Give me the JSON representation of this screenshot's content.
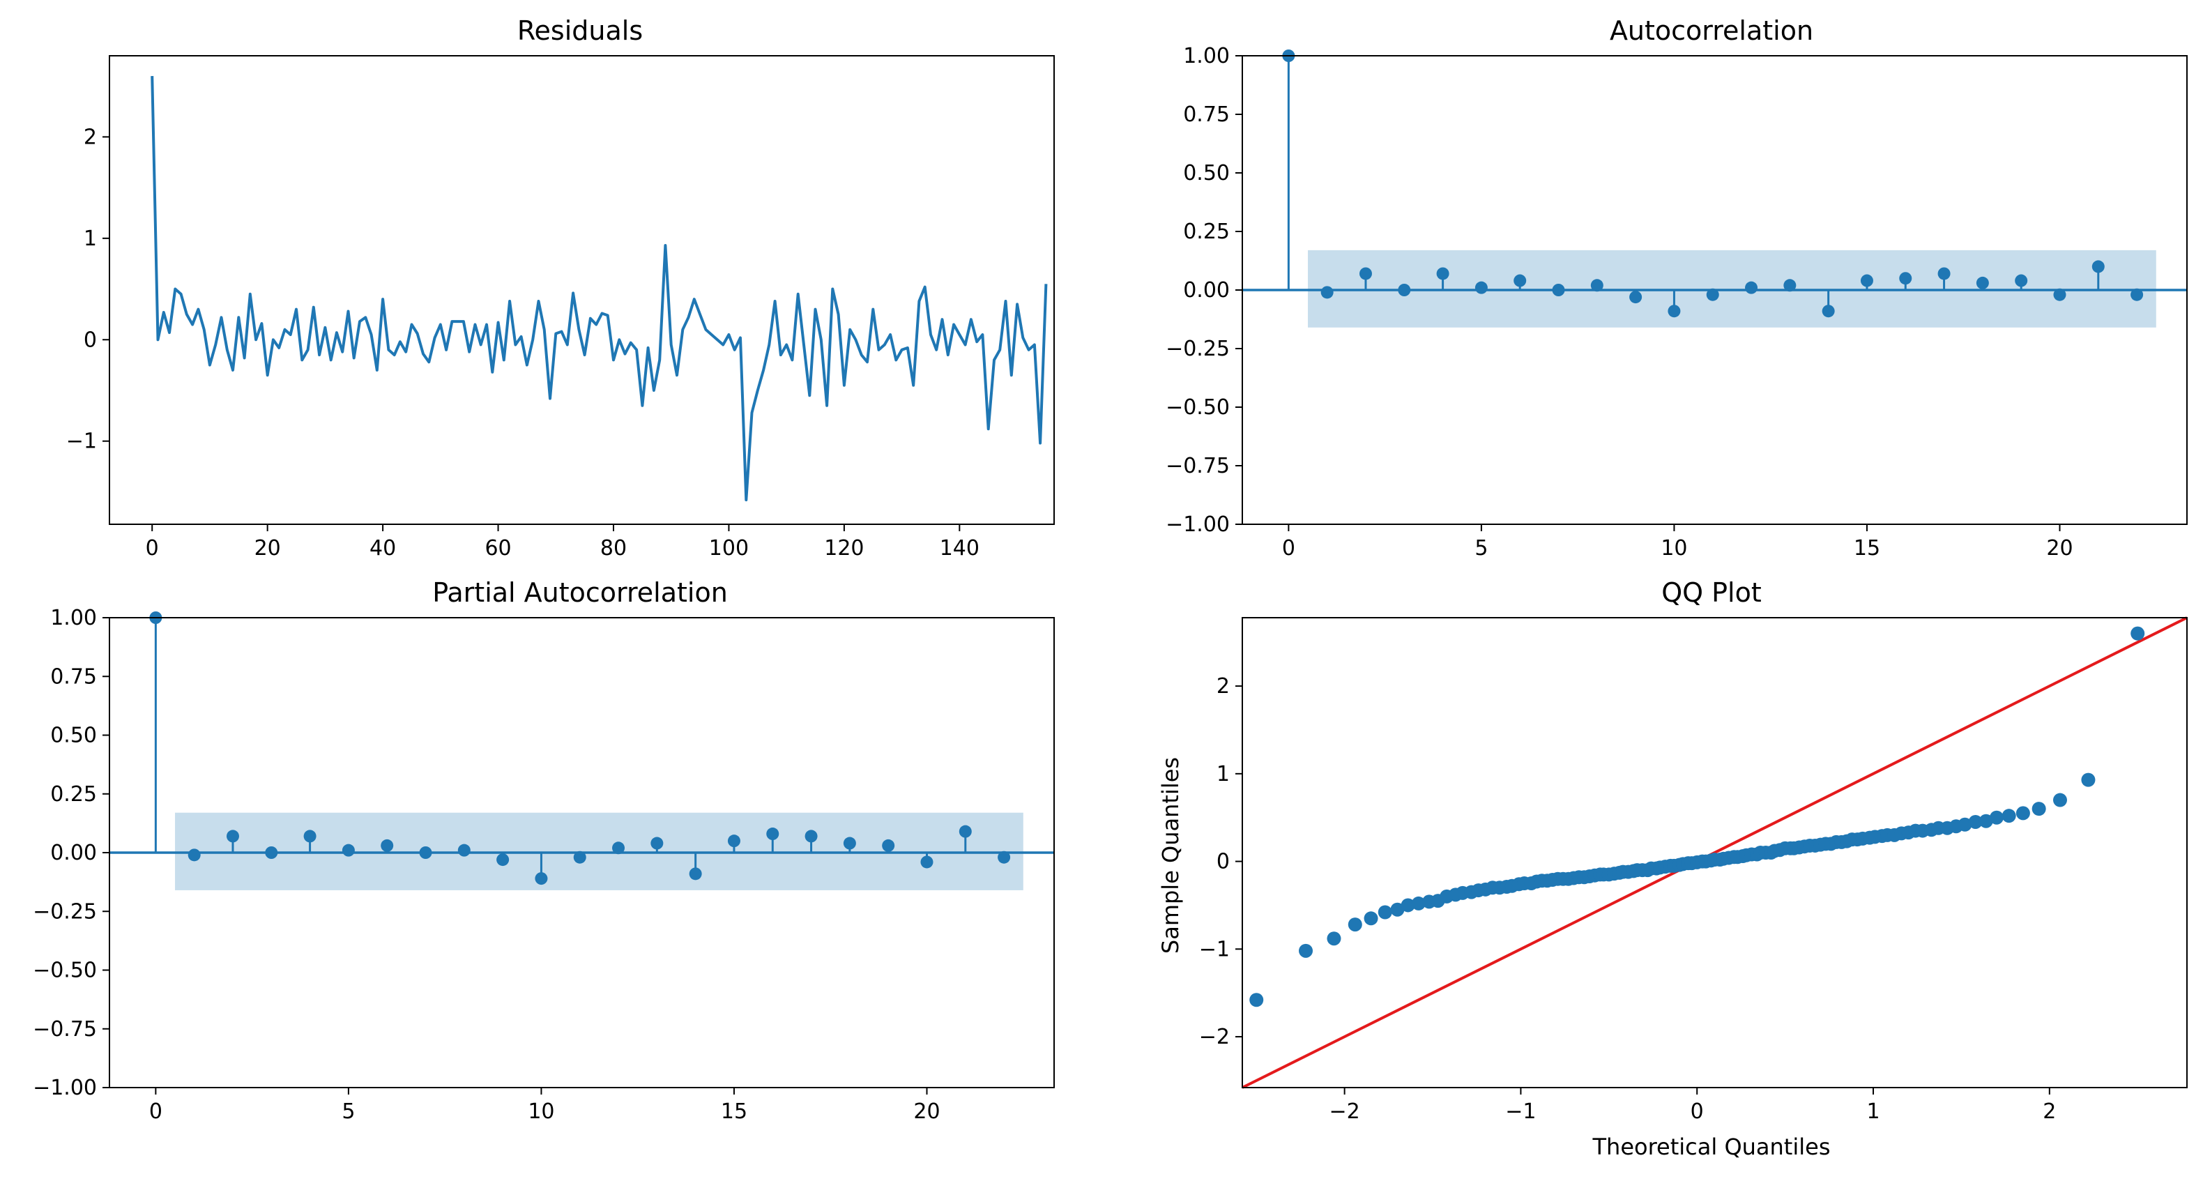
{
  "colors": {
    "series": "#1f77b4",
    "band": "#1f77b4",
    "reference_line": "#e41a1c",
    "frame": "#000000"
  },
  "chart_data": [
    {
      "type": "line",
      "title": "Residuals",
      "xlabel": "",
      "ylabel": "",
      "xlim": [
        -7.4,
        156.4
      ],
      "ylim": [
        -1.82,
        2.8
      ],
      "xticks": [
        0,
        20,
        40,
        60,
        80,
        100,
        120,
        140
      ],
      "xtick_labels": [
        "0",
        "20",
        "40",
        "60",
        "80",
        "100",
        "120",
        "140"
      ],
      "yticks": [
        -1,
        0,
        1,
        2
      ],
      "ytick_labels": [
        "−1",
        "0",
        "1",
        "2"
      ],
      "grid": false,
      "series": [
        {
          "x_start": 0,
          "values": [
            2.6,
            0.0,
            0.27,
            0.07,
            0.5,
            0.45,
            0.25,
            0.15,
            0.3,
            0.1,
            -0.25,
            -0.05,
            0.22,
            -0.1,
            -0.3,
            0.22,
            -0.18,
            0.45,
            0.0,
            0.16,
            -0.35,
            0.0,
            -0.08,
            0.1,
            0.05,
            0.3,
            -0.2,
            -0.1,
            0.32,
            -0.15,
            0.12,
            -0.2,
            0.07,
            -0.12,
            0.28,
            -0.18,
            0.18,
            0.22,
            0.05,
            -0.3,
            0.4,
            -0.1,
            -0.15,
            -0.02,
            -0.12,
            0.15,
            0.06,
            -0.14,
            -0.22,
            0.02,
            0.15,
            -0.1,
            0.18,
            0.18,
            0.18,
            -0.12,
            0.15,
            -0.05,
            0.15,
            -0.32,
            0.17,
            -0.2,
            0.38,
            -0.05,
            0.03,
            -0.25,
            0.0,
            0.38,
            0.1,
            -0.58,
            0.06,
            0.08,
            -0.05,
            0.46,
            0.1,
            -0.15,
            0.21,
            0.15,
            0.26,
            0.24,
            -0.2,
            0.0,
            -0.14,
            -0.03,
            -0.1,
            -0.65,
            -0.08,
            -0.5,
            -0.2,
            0.93,
            -0.05,
            -0.35,
            0.1,
            0.22,
            0.4,
            0.25,
            0.1,
            0.05,
            0.0,
            -0.05,
            0.05,
            -0.1,
            0.02,
            -1.58,
            -0.72,
            -0.5,
            -0.3,
            -0.05,
            0.38,
            -0.15,
            -0.05,
            -0.2,
            0.45,
            -0.05,
            -0.55,
            0.3,
            0.0,
            -0.65,
            0.5,
            0.25,
            -0.45,
            0.1,
            0.0,
            -0.15,
            -0.22,
            0.3,
            -0.1,
            -0.05,
            0.05,
            -0.2,
            -0.1,
            -0.08,
            -0.45,
            0.38,
            0.52,
            0.05,
            -0.1,
            0.2,
            -0.15,
            0.15,
            0.05,
            -0.05,
            0.2,
            -0.02,
            0.05,
            -0.88,
            -0.2,
            -0.1,
            0.38,
            -0.35,
            0.35,
            0.02,
            -0.1,
            -0.05,
            -1.02,
            0.55
          ]
        }
      ]
    },
    {
      "type": "stem",
      "title": "Autocorrelation",
      "xlabel": "",
      "ylabel": "",
      "xlim": [
        -1.2,
        23.3
      ],
      "ylim": [
        -1.0,
        1.0
      ],
      "xticks": [
        0,
        5,
        10,
        15,
        20
      ],
      "xtick_labels": [
        "0",
        "5",
        "10",
        "15",
        "20"
      ],
      "yticks": [
        -1.0,
        -0.75,
        -0.5,
        -0.25,
        0.0,
        0.25,
        0.5,
        0.75,
        1.0
      ],
      "ytick_labels": [
        "−1.00",
        "−0.75",
        "−0.50",
        "−0.25",
        "0.00",
        "0.25",
        "0.50",
        "0.75",
        "1.00"
      ],
      "grid": false,
      "x": [
        0,
        1,
        2,
        3,
        4,
        5,
        6,
        7,
        8,
        9,
        10,
        11,
        12,
        13,
        14,
        15,
        16,
        17,
        18,
        19,
        20,
        21,
        22
      ],
      "values": [
        1.0,
        -0.01,
        0.07,
        0.0,
        0.07,
        0.01,
        0.04,
        0.0,
        0.02,
        -0.03,
        -0.09,
        -0.02,
        0.01,
        0.02,
        -0.09,
        0.04,
        0.05,
        0.07,
        0.03,
        0.04,
        -0.02,
        0.1,
        -0.02
      ],
      "confidence_band": {
        "x_from": 0.5,
        "x_to": 22.5,
        "lower": -0.16,
        "upper": 0.17
      }
    },
    {
      "type": "stem",
      "title": "Partial Autocorrelation",
      "xlabel": "",
      "ylabel": "",
      "xlim": [
        -1.2,
        23.3
      ],
      "ylim": [
        -1.0,
        1.0
      ],
      "xticks": [
        0,
        5,
        10,
        15,
        20
      ],
      "xtick_labels": [
        "0",
        "5",
        "10",
        "15",
        "20"
      ],
      "yticks": [
        -1.0,
        -0.75,
        -0.5,
        -0.25,
        0.0,
        0.25,
        0.5,
        0.75,
        1.0
      ],
      "ytick_labels": [
        "−1.00",
        "−0.75",
        "−0.50",
        "−0.25",
        "0.00",
        "0.25",
        "0.50",
        "0.75",
        "1.00"
      ],
      "grid": false,
      "x": [
        0,
        1,
        2,
        3,
        4,
        5,
        6,
        7,
        8,
        9,
        10,
        11,
        12,
        13,
        14,
        15,
        16,
        17,
        18,
        19,
        20,
        21,
        22
      ],
      "values": [
        1.0,
        -0.01,
        0.07,
        0.0,
        0.07,
        0.01,
        0.03,
        0.0,
        0.01,
        -0.03,
        -0.11,
        -0.02,
        0.02,
        0.04,
        -0.09,
        0.05,
        0.08,
        0.07,
        0.04,
        0.03,
        -0.04,
        0.09,
        -0.02
      ],
      "confidence_band": {
        "x_from": 0.5,
        "x_to": 22.5,
        "lower": -0.16,
        "upper": 0.17
      }
    },
    {
      "type": "scatter",
      "title": "QQ Plot",
      "xlabel": "Theoretical Quantiles",
      "ylabel": "Sample Quantiles",
      "xlim": [
        -2.58,
        2.78
      ],
      "ylim": [
        -2.58,
        2.78
      ],
      "xticks": [
        -2,
        -1,
        0,
        1,
        2
      ],
      "xtick_labels": [
        "−2",
        "−1",
        "0",
        "1",
        "2"
      ],
      "yticks": [
        -2,
        -1,
        0,
        1,
        2
      ],
      "ytick_labels": [
        "−2",
        "−1",
        "0",
        "1",
        "2"
      ],
      "grid": false,
      "reference_line": {
        "slope": 1,
        "intercept": 0
      },
      "points": [
        [
          -2.5,
          -1.58
        ],
        [
          -2.22,
          -1.02
        ],
        [
          -2.06,
          -0.88
        ],
        [
          -1.94,
          -0.72
        ],
        [
          -1.85,
          -0.65
        ],
        [
          -1.77,
          -0.58
        ],
        [
          -1.7,
          -0.55
        ],
        [
          -1.64,
          -0.5
        ],
        [
          -1.58,
          -0.48
        ],
        [
          -1.52,
          -0.46
        ],
        [
          -1.47,
          -0.45
        ],
        [
          -1.42,
          -0.4
        ],
        [
          -1.37,
          -0.38
        ],
        [
          -1.33,
          -0.36
        ],
        [
          -1.28,
          -0.35
        ],
        [
          -1.24,
          -0.33
        ],
        [
          -1.2,
          -0.32
        ],
        [
          -1.16,
          -0.3
        ],
        [
          -1.12,
          -0.3
        ],
        [
          -1.08,
          -0.29
        ],
        [
          -1.05,
          -0.28
        ],
        [
          -1.01,
          -0.26
        ],
        [
          -0.98,
          -0.25
        ],
        [
          -0.94,
          -0.25
        ],
        [
          -0.91,
          -0.23
        ],
        [
          -0.88,
          -0.22
        ],
        [
          -0.85,
          -0.22
        ],
        [
          -0.82,
          -0.21
        ],
        [
          -0.79,
          -0.2
        ],
        [
          -0.76,
          -0.2
        ],
        [
          -0.73,
          -0.2
        ],
        [
          -0.7,
          -0.19
        ],
        [
          -0.67,
          -0.18
        ],
        [
          -0.64,
          -0.18
        ],
        [
          -0.61,
          -0.17
        ],
        [
          -0.58,
          -0.16
        ],
        [
          -0.55,
          -0.15
        ],
        [
          -0.53,
          -0.15
        ],
        [
          -0.5,
          -0.15
        ],
        [
          -0.47,
          -0.14
        ],
        [
          -0.44,
          -0.13
        ],
        [
          -0.42,
          -0.12
        ],
        [
          -0.39,
          -0.12
        ],
        [
          -0.36,
          -0.11
        ],
        [
          -0.34,
          -0.1
        ],
        [
          -0.31,
          -0.1
        ],
        [
          -0.28,
          -0.1
        ],
        [
          -0.26,
          -0.08
        ],
        [
          -0.23,
          -0.08
        ],
        [
          -0.21,
          -0.07
        ],
        [
          -0.18,
          -0.06
        ],
        [
          -0.15,
          -0.05
        ],
        [
          -0.13,
          -0.05
        ],
        [
          -0.1,
          -0.04
        ],
        [
          -0.08,
          -0.03
        ],
        [
          -0.05,
          -0.02
        ],
        [
          -0.03,
          -0.02
        ],
        [
          0.0,
          -0.01
        ],
        [
          0.03,
          0.0
        ],
        [
          0.05,
          0.0
        ],
        [
          0.08,
          0.01
        ],
        [
          0.1,
          0.02
        ],
        [
          0.13,
          0.02
        ],
        [
          0.15,
          0.03
        ],
        [
          0.18,
          0.04
        ],
        [
          0.21,
          0.05
        ],
        [
          0.23,
          0.05
        ],
        [
          0.26,
          0.06
        ],
        [
          0.28,
          0.07
        ],
        [
          0.31,
          0.08
        ],
        [
          0.34,
          0.08
        ],
        [
          0.36,
          0.1
        ],
        [
          0.39,
          0.1
        ],
        [
          0.42,
          0.1
        ],
        [
          0.44,
          0.12
        ],
        [
          0.47,
          0.13
        ],
        [
          0.5,
          0.15
        ],
        [
          0.53,
          0.15
        ],
        [
          0.55,
          0.15
        ],
        [
          0.58,
          0.16
        ],
        [
          0.61,
          0.17
        ],
        [
          0.64,
          0.18
        ],
        [
          0.67,
          0.18
        ],
        [
          0.7,
          0.19
        ],
        [
          0.73,
          0.2
        ],
        [
          0.76,
          0.2
        ],
        [
          0.79,
          0.22
        ],
        [
          0.82,
          0.22
        ],
        [
          0.85,
          0.23
        ],
        [
          0.88,
          0.25
        ],
        [
          0.91,
          0.25
        ],
        [
          0.94,
          0.26
        ],
        [
          0.98,
          0.27
        ],
        [
          1.01,
          0.28
        ],
        [
          1.05,
          0.29
        ],
        [
          1.08,
          0.3
        ],
        [
          1.12,
          0.3
        ],
        [
          1.16,
          0.32
        ],
        [
          1.2,
          0.33
        ],
        [
          1.24,
          0.35
        ],
        [
          1.28,
          0.35
        ],
        [
          1.33,
          0.36
        ],
        [
          1.37,
          0.38
        ],
        [
          1.42,
          0.38
        ],
        [
          1.47,
          0.4
        ],
        [
          1.52,
          0.42
        ],
        [
          1.58,
          0.45
        ],
        [
          1.64,
          0.46
        ],
        [
          1.7,
          0.5
        ],
        [
          1.77,
          0.52
        ],
        [
          1.85,
          0.55
        ],
        [
          1.94,
          0.6
        ],
        [
          2.06,
          0.7
        ],
        [
          2.22,
          0.93
        ],
        [
          2.5,
          2.6
        ]
      ]
    }
  ]
}
